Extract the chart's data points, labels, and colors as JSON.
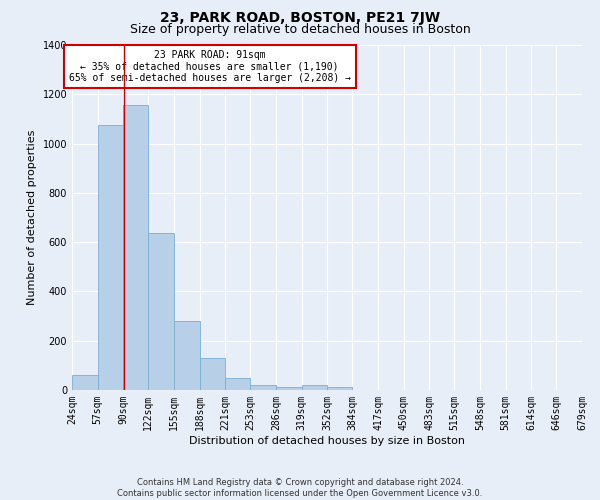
{
  "title": "23, PARK ROAD, BOSTON, PE21 7JW",
  "subtitle": "Size of property relative to detached houses in Boston",
  "xlabel": "Distribution of detached houses by size in Boston",
  "ylabel": "Number of detached properties",
  "footnote1": "Contains HM Land Registry data © Crown copyright and database right 2024.",
  "footnote2": "Contains public sector information licensed under the Open Government Licence v3.0.",
  "annotation_title": "23 PARK ROAD: 91sqm",
  "annotation_line1": "← 35% of detached houses are smaller (1,190)",
  "annotation_line2": "65% of semi-detached houses are larger (2,208) →",
  "property_size": 91,
  "bar_left_edges": [
    24,
    57,
    90,
    122,
    155,
    188,
    221,
    253,
    286,
    319,
    352,
    384,
    417,
    450,
    483,
    515,
    548,
    581,
    614,
    646
  ],
  "bar_right_edges": [
    57,
    90,
    122,
    155,
    188,
    221,
    253,
    286,
    319,
    352,
    384,
    417,
    450,
    483,
    515,
    548,
    581,
    614,
    646,
    679
  ],
  "bar_heights": [
    62,
    1075,
    1155,
    638,
    280,
    130,
    47,
    20,
    13,
    20,
    13,
    0,
    0,
    0,
    0,
    0,
    0,
    0,
    0,
    0
  ],
  "x_tick_labels": [
    "24sqm",
    "57sqm",
    "90sqm",
    "122sqm",
    "155sqm",
    "188sqm",
    "221sqm",
    "253sqm",
    "286sqm",
    "319sqm",
    "352sqm",
    "384sqm",
    "417sqm",
    "450sqm",
    "483sqm",
    "515sqm",
    "548sqm",
    "581sqm",
    "614sqm",
    "646sqm",
    "679sqm"
  ],
  "bar_color": "#b8cfe8",
  "bar_edge_color": "#7aaed4",
  "vline_color": "#cc0000",
  "annotation_box_color": "#cc0000",
  "annotation_bg": "#ffffff",
  "ylim": [
    0,
    1400
  ],
  "yticks": [
    0,
    200,
    400,
    600,
    800,
    1000,
    1200,
    1400
  ],
  "background_color": "#e8eef8",
  "grid_color": "#ffffff",
  "title_fontsize": 10,
  "subtitle_fontsize": 9,
  "axis_label_fontsize": 8,
  "tick_fontsize": 7,
  "annotation_fontsize": 7,
  "footnote_fontsize": 6
}
